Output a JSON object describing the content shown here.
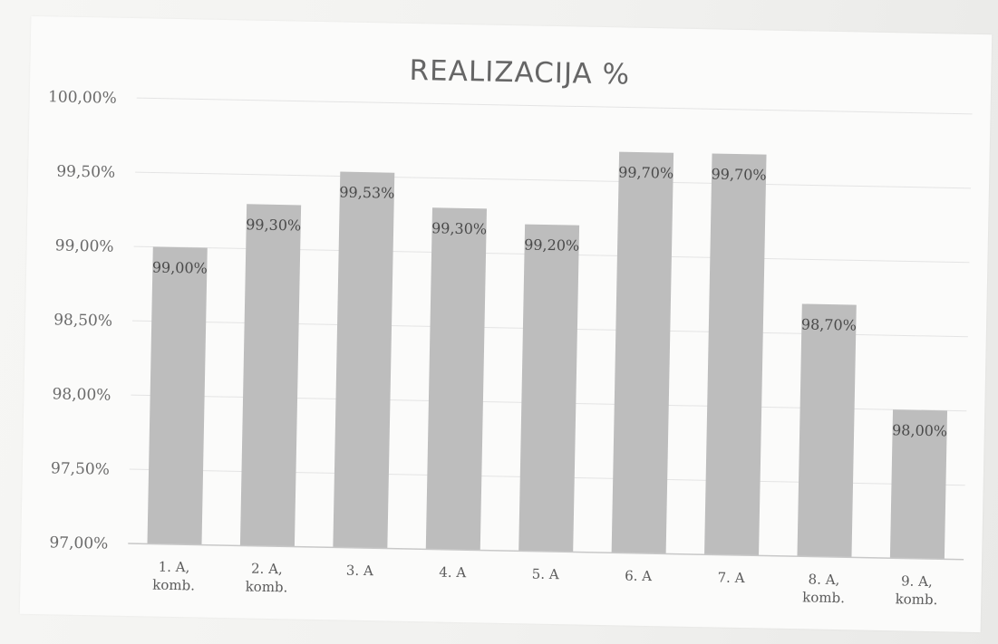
{
  "chart_data": {
    "type": "bar",
    "title": "REALIZACIJA %",
    "xlabel": "",
    "ylabel": "",
    "ylim": [
      97.0,
      100.0
    ],
    "yticks": [
      97.0,
      97.5,
      98.0,
      98.5,
      99.0,
      99.5,
      100.0
    ],
    "ytick_labels": [
      "97,00%",
      "97,50%",
      "98,00%",
      "98,50%",
      "99,00%",
      "99,50%",
      "100,00%"
    ],
    "grid": true,
    "legend": "none",
    "bar_color": "#bdbdbd",
    "categories": [
      [
        "1. A,",
        "komb."
      ],
      [
        "2. A,",
        "komb."
      ],
      [
        "3. A"
      ],
      [
        "4. A"
      ],
      [
        "5. A"
      ],
      [
        "6. A"
      ],
      [
        "7. A"
      ],
      [
        "8. A,",
        "komb."
      ],
      [
        "9. A,",
        "komb."
      ]
    ],
    "values": [
      99.0,
      99.3,
      99.53,
      99.3,
      99.2,
      99.7,
      99.7,
      98.7,
      98.0
    ],
    "data_labels": [
      "99,00%",
      "99,30%",
      "99,53%",
      "99,30%",
      "99,20%",
      "99,70%",
      "99,70%",
      "98,70%",
      "98,00%"
    ]
  }
}
